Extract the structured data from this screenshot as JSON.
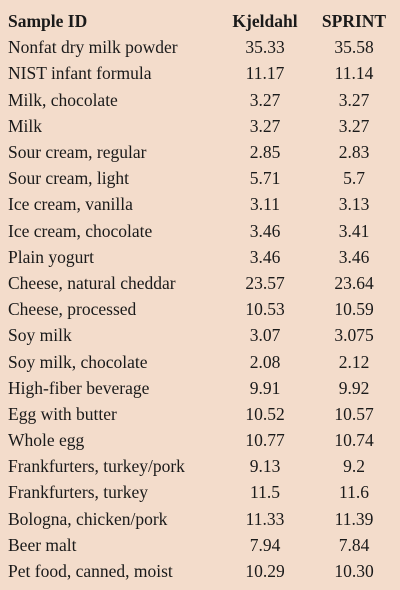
{
  "table": {
    "headers": [
      "Sample ID",
      "Kjeldahl",
      "SPRINT"
    ],
    "rows": [
      [
        "Nonfat dry milk powder",
        "35.33",
        "35.58"
      ],
      [
        "NIST infant formula",
        "11.17",
        "11.14"
      ],
      [
        "Milk, chocolate",
        "3.27",
        "3.27"
      ],
      [
        "Milk",
        "3.27",
        "3.27"
      ],
      [
        "Sour cream, regular",
        "2.85",
        "2.83"
      ],
      [
        "Sour cream, light",
        "5.71",
        "5.7"
      ],
      [
        "Ice cream, vanilla",
        "3.11",
        "3.13"
      ],
      [
        "Ice cream, chocolate",
        "3.46",
        "3.41"
      ],
      [
        "Plain yogurt",
        "3.46",
        "3.46"
      ],
      [
        "Cheese, natural cheddar",
        "23.57",
        "23.64"
      ],
      [
        "Cheese, processed",
        "10.53",
        "10.59"
      ],
      [
        "Soy milk",
        "3.07",
        "3.075"
      ],
      [
        "Soy milk, chocolate",
        "2.08",
        "2.12"
      ],
      [
        "High-fiber beverage",
        "9.91",
        "9.92"
      ],
      [
        "Egg with butter",
        "10.52",
        "10.57"
      ],
      [
        "Whole egg",
        "10.77",
        "10.74"
      ],
      [
        "Frankfurters, turkey/pork",
        "9.13",
        "9.2"
      ],
      [
        "Frankfurters, turkey",
        "11.5",
        "11.6"
      ],
      [
        "Bologna, chicken/pork",
        "11.33",
        "11.39"
      ],
      [
        "Beer malt",
        "7.94",
        "7.84"
      ],
      [
        "Pet food, canned, moist",
        "10.29",
        "10.30"
      ]
    ]
  },
  "colors": {
    "background": "#f3dccb",
    "text": "#1a1a1a"
  }
}
